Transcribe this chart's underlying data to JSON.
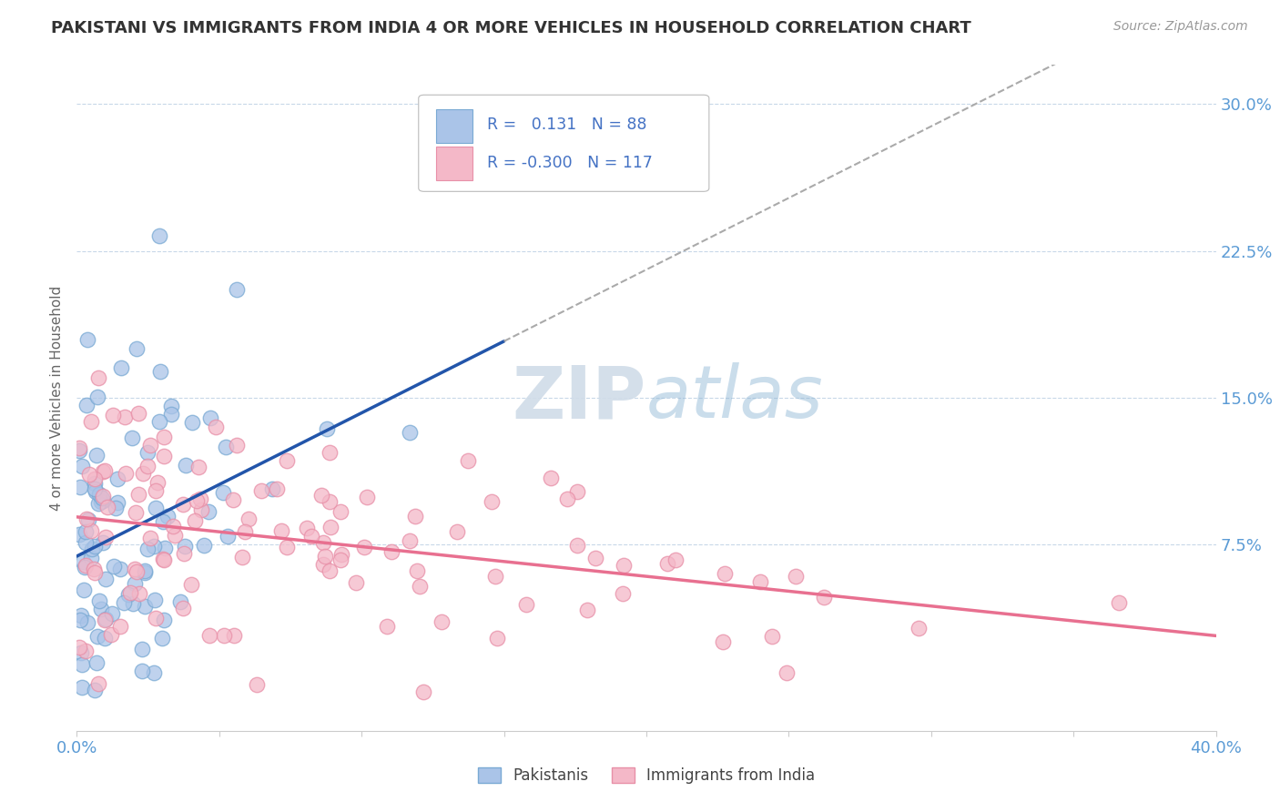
{
  "title": "PAKISTANI VS IMMIGRANTS FROM INDIA 4 OR MORE VEHICLES IN HOUSEHOLD CORRELATION CHART",
  "source": "Source: ZipAtlas.com",
  "ylabel": "4 or more Vehicles in Household",
  "xlim": [
    0.0,
    0.4
  ],
  "ylim": [
    -0.02,
    0.32
  ],
  "blue_r": 0.131,
  "blue_n": 88,
  "pink_r": -0.3,
  "pink_n": 117,
  "blue_color": "#aac4e8",
  "pink_color": "#f4b8c8",
  "blue_edge_color": "#7aaad4",
  "pink_edge_color": "#e890a8",
  "blue_line_color": "#2255aa",
  "pink_line_color": "#e87090",
  "dash_line_color": "#aaaaaa",
  "watermark_color": "#d0dce8",
  "background_color": "#ffffff",
  "grid_color": "#c8d8e8",
  "title_color": "#333333",
  "axis_tick_color": "#5b9bd5",
  "ylabel_color": "#666666",
  "legend_text_color": "#4472c4",
  "source_color": "#999999"
}
